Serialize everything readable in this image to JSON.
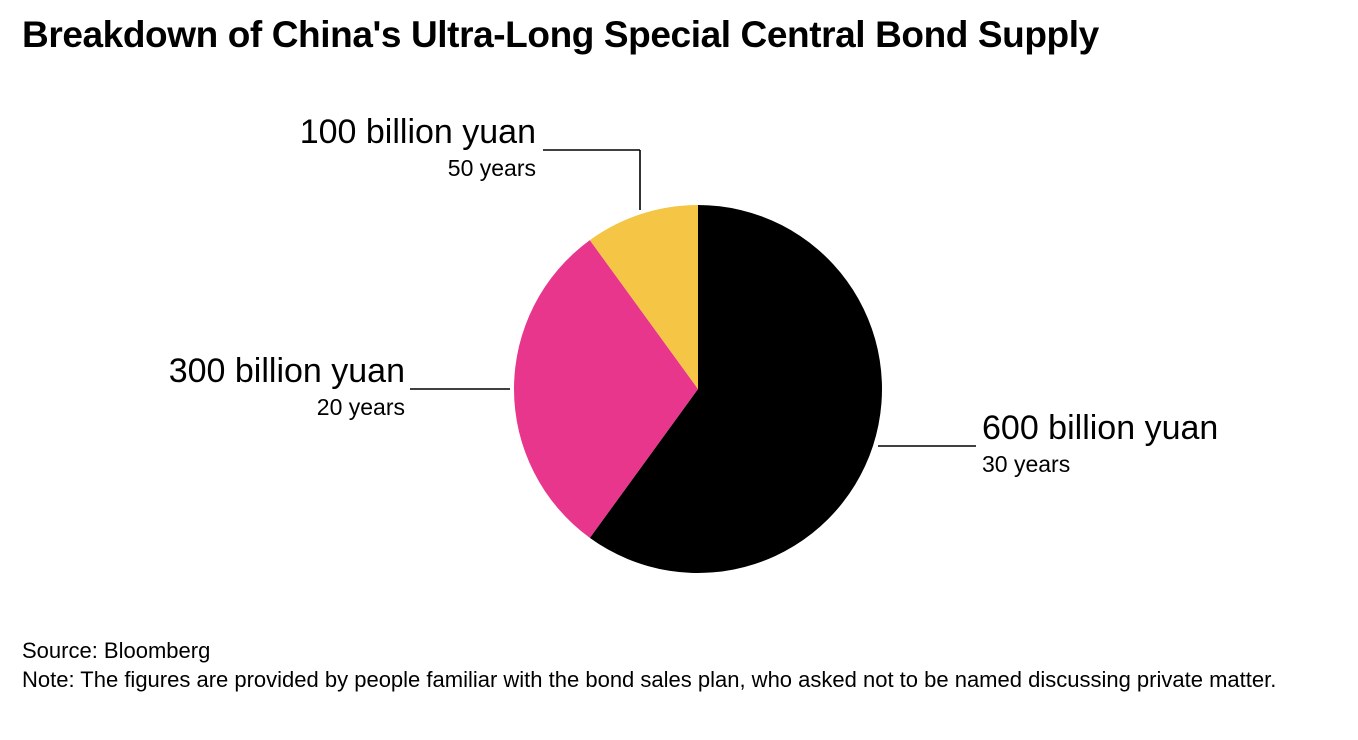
{
  "title": "Breakdown of China's Ultra-Long Special Central Bond Supply",
  "chart_data": {
    "type": "pie",
    "title": "Breakdown of China's Ultra-Long Special Central Bond Supply",
    "slices": [
      {
        "value": 600,
        "label": "600 billion yuan",
        "sublabel": "30 years",
        "color": "#000000"
      },
      {
        "value": 300,
        "label": "300 billion yuan",
        "sublabel": "20 years",
        "color": "#e8368d"
      },
      {
        "value": 100,
        "label": "100 billion yuan",
        "sublabel": "50 years",
        "color": "#f5c545"
      }
    ],
    "unit": "billion yuan"
  },
  "footer": {
    "source": "Source: Bloomberg",
    "note": "Note: The figures are provided by people familiar with the bond sales plan, who asked not to be named discussing private matter."
  }
}
